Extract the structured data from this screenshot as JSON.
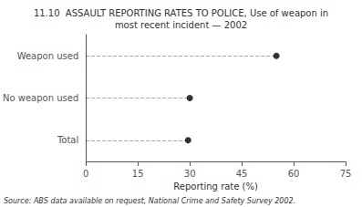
{
  "chart_data": {
    "type": "scatter",
    "orientation": "horizontal",
    "title": "11.10  ASSAULT REPORTING RATES TO POLICE, Use of weapon in\nmost recent incident — 2002",
    "source": "Source: ABS data available on request, National Crime and Safety Survey 2002.",
    "xlabel": "Reporting rate (%)",
    "categories": [
      "Weapon used",
      "No weapon used",
      "Total"
    ],
    "values": [
      55.0,
      30.0,
      29.5
    ],
    "color": "#000000",
    "marker": "circle",
    "line_style": "dashed",
    "xlim": [
      0,
      75
    ],
    "xticks": [
      0,
      15,
      30,
      45,
      60,
      75
    ],
    "grid": false
  }
}
